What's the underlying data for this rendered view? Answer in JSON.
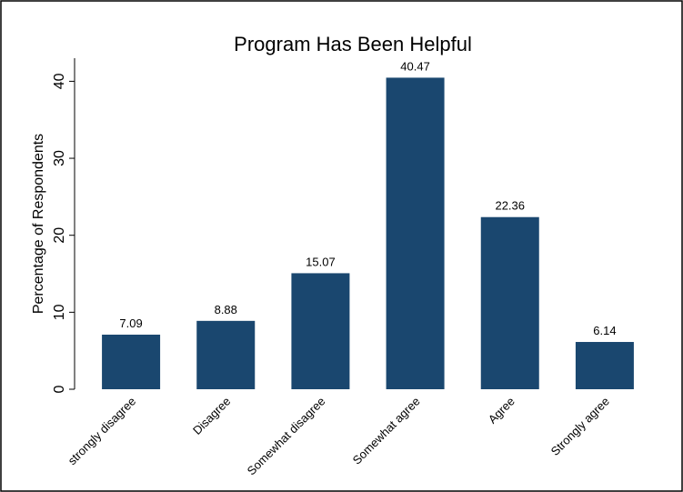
{
  "chart_data": {
    "type": "bar",
    "title": "Program Has Been Helpful",
    "y_label": "Percentage of Respondents",
    "categories": [
      "strongly disagree",
      "Disagree",
      "Somewhat disagree",
      "Somewhat agree",
      "Agree",
      "Strongly agree"
    ],
    "values": [
      7.09,
      8.88,
      15.07,
      40.47,
      22.36,
      6.14
    ],
    "color": "#1a476f",
    "ylim": [
      0,
      43
    ],
    "yticks": [
      0,
      10,
      20,
      30,
      40
    ],
    "grid": false
  }
}
